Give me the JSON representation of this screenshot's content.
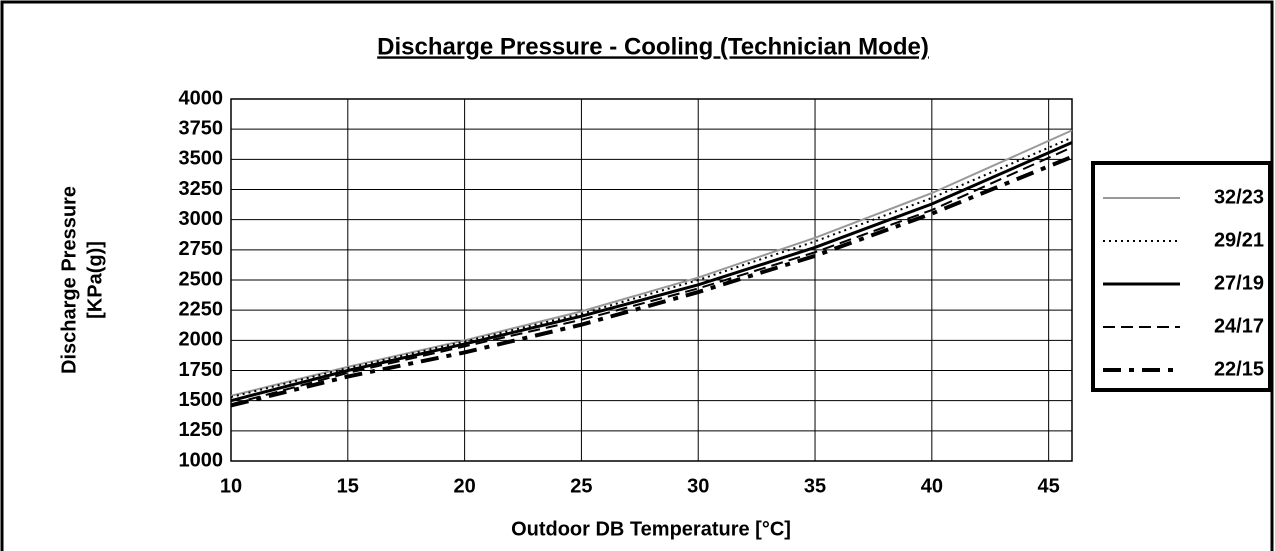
{
  "chart_data": {
    "type": "line",
    "title": "Discharge Pressure - Cooling (Technician Mode)",
    "x_label": "Outdoor DB Temperature [°C]",
    "y_label": [
      "Discharge Pressure",
      "[KPa(g)]"
    ],
    "x": [
      10,
      15,
      20,
      25,
      30,
      35,
      40,
      46
    ],
    "series": [
      {
        "name": "32/23",
        "color": "#999999",
        "width": 2,
        "dash": "none",
        "values": [
          1540,
          1780,
          2000,
          2240,
          2520,
          2850,
          3220,
          3740
        ]
      },
      {
        "name": "29/21",
        "color": "#000000",
        "width": 2,
        "dash": "2,4",
        "values": [
          1530,
          1770,
          1990,
          2220,
          2500,
          2820,
          3180,
          3680
        ]
      },
      {
        "name": "27/19",
        "color": "#000000",
        "width": 3,
        "dash": "none",
        "values": [
          1500,
          1750,
          1970,
          2200,
          2460,
          2770,
          3130,
          3640
        ]
      },
      {
        "name": "24/17",
        "color": "#000000",
        "width": 2,
        "dash": "12,6",
        "values": [
          1470,
          1730,
          1950,
          2170,
          2430,
          2730,
          3080,
          3600
        ]
      },
      {
        "name": "22/15",
        "color": "#000000",
        "width": 4,
        "dash": "18,8,5,8",
        "values": [
          1460,
          1700,
          1900,
          2130,
          2400,
          2700,
          3050,
          3520
        ]
      }
    ],
    "xlim": [
      10,
      46
    ],
    "xticks": [
      10,
      15,
      20,
      25,
      30,
      35,
      40,
      45
    ],
    "ylim": [
      1000,
      4000
    ],
    "yticks": [
      1000,
      1250,
      1500,
      1750,
      2000,
      2250,
      2500,
      2750,
      3000,
      3250,
      3500,
      3750,
      4000
    ],
    "grid": true,
    "legend": "right"
  }
}
